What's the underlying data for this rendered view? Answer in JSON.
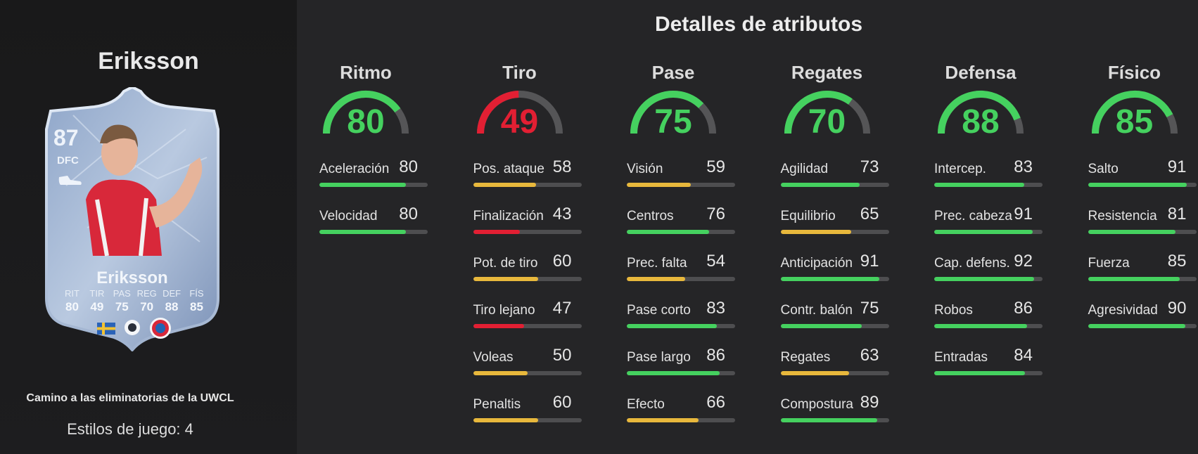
{
  "player": {
    "name": "Eriksson",
    "card": {
      "rating": "87",
      "position": "DFC",
      "name": "Eriksson",
      "stats": [
        {
          "label": "RIT",
          "value": "80"
        },
        {
          "label": "TIR",
          "value": "49"
        },
        {
          "label": "PAS",
          "value": "75"
        },
        {
          "label": "REG",
          "value": "70"
        },
        {
          "label": "DEF",
          "value": "88"
        },
        {
          "label": "FÍS",
          "value": "85"
        }
      ]
    },
    "subtitle": "Camino a las eliminatorias de la UWCL",
    "play_styles": "Estilos de juego: 4"
  },
  "details": {
    "title": "Detalles de atributos",
    "colors": {
      "green": "#45d15f",
      "yellow": "#e8b83c",
      "red": "#e21f33",
      "track": "#555557"
    },
    "categories": [
      {
        "name": "Ritmo",
        "value": 80,
        "attributes": [
          {
            "label": "Aceleración",
            "value": 80
          },
          {
            "label": "Velocidad",
            "value": 80
          }
        ]
      },
      {
        "name": "Tiro",
        "value": 49,
        "attributes": [
          {
            "label": "Pos. ataque",
            "value": 58
          },
          {
            "label": "Finalización",
            "value": 43
          },
          {
            "label": "Pot. de tiro",
            "value": 60
          },
          {
            "label": "Tiro lejano",
            "value": 47
          },
          {
            "label": "Voleas",
            "value": 50
          },
          {
            "label": "Penaltis",
            "value": 60
          }
        ]
      },
      {
        "name": "Pase",
        "value": 75,
        "attributes": [
          {
            "label": "Visión",
            "value": 59
          },
          {
            "label": "Centros",
            "value": 76
          },
          {
            "label": "Prec. falta",
            "value": 54
          },
          {
            "label": "Pase corto",
            "value": 83
          },
          {
            "label": "Pase largo",
            "value": 86
          },
          {
            "label": "Efecto",
            "value": 66
          }
        ]
      },
      {
        "name": "Regates",
        "value": 70,
        "attributes": [
          {
            "label": "Agilidad",
            "value": 73
          },
          {
            "label": "Equilibrio",
            "value": 65
          },
          {
            "label": "Anticipación",
            "value": 91
          },
          {
            "label": "Contr. balón",
            "value": 75
          },
          {
            "label": "Regates",
            "value": 63
          },
          {
            "label": "Compostura",
            "value": 89
          }
        ]
      },
      {
        "name": "Defensa",
        "value": 88,
        "attributes": [
          {
            "label": "Intercep.",
            "value": 83
          },
          {
            "label": "Prec. cabeza",
            "value": 91
          },
          {
            "label": "Cap. defens.",
            "value": 92
          },
          {
            "label": "Robos",
            "value": 86
          },
          {
            "label": "Entradas",
            "value": 84
          }
        ]
      },
      {
        "name": "Físico",
        "value": 85,
        "attributes": [
          {
            "label": "Salto",
            "value": 91
          },
          {
            "label": "Resistencia",
            "value": 81
          },
          {
            "label": "Fuerza",
            "value": 85
          },
          {
            "label": "Agresividad",
            "value": 90
          }
        ]
      }
    ]
  }
}
